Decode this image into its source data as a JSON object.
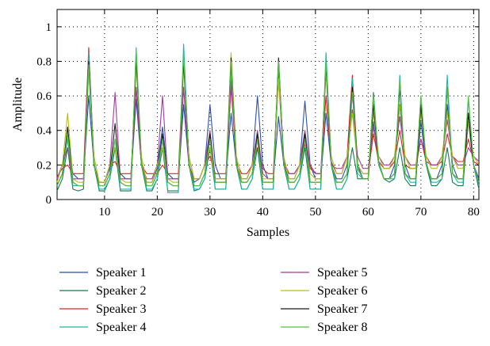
{
  "chart_data": {
    "type": "line",
    "title": "",
    "xlabel": "Samples",
    "ylabel": "Amplitude",
    "xlim": [
      1,
      81
    ],
    "ylim": [
      0,
      1.1
    ],
    "xticks": [
      10,
      20,
      30,
      40,
      50,
      60,
      70,
      80
    ],
    "yticks": [
      0,
      0.2,
      0.4,
      0.6,
      0.8,
      1
    ],
    "ytick_labels": [
      "0",
      "0.2",
      "0.4",
      "0.6",
      "0.8",
      "1"
    ],
    "grid": true,
    "legend_position": "bottom",
    "series": [
      {
        "name": "Speaker 1",
        "color": "#2a4fb0",
        "values": [
          0.12,
          0.2,
          0.35,
          0.15,
          0.12,
          0.12,
          0.6,
          0.2,
          0.1,
          0.1,
          0.18,
          0.3,
          0.15,
          0.12,
          0.12,
          0.58,
          0.2,
          0.1,
          0.1,
          0.18,
          0.42,
          0.15,
          0.12,
          0.12,
          0.55,
          0.2,
          0.1,
          0.12,
          0.2,
          0.55,
          0.2,
          0.12,
          0.12,
          0.5,
          0.2,
          0.12,
          0.12,
          0.2,
          0.6,
          0.2,
          0.12,
          0.12,
          0.48,
          0.2,
          0.12,
          0.12,
          0.2,
          0.57,
          0.2,
          0.12,
          0.12,
          0.5,
          0.2,
          0.12,
          0.12,
          0.2,
          0.62,
          0.2,
          0.12,
          0.12,
          0.45,
          0.2,
          0.12,
          0.12,
          0.2,
          0.55,
          0.2,
          0.12,
          0.12,
          0.45,
          0.2,
          0.12,
          0.12,
          0.2,
          0.55,
          0.2,
          0.12,
          0.12,
          0.45,
          0.2,
          0.12
        ]
      },
      {
        "name": "Speaker 2",
        "color": "#137a4e",
        "values": [
          0.05,
          0.12,
          0.3,
          0.06,
          0.05,
          0.06,
          0.76,
          0.2,
          0.05,
          0.05,
          0.12,
          0.3,
          0.05,
          0.05,
          0.05,
          0.83,
          0.2,
          0.05,
          0.05,
          0.12,
          0.3,
          0.05,
          0.05,
          0.05,
          0.85,
          0.2,
          0.05,
          0.06,
          0.12,
          0.3,
          0.06,
          0.06,
          0.06,
          0.7,
          0.2,
          0.06,
          0.06,
          0.12,
          0.3,
          0.06,
          0.06,
          0.06,
          0.78,
          0.2,
          0.06,
          0.06,
          0.12,
          0.3,
          0.06,
          0.06,
          0.06,
          0.8,
          0.2,
          0.06,
          0.06,
          0.12,
          0.3,
          0.12,
          0.12,
          0.12,
          0.62,
          0.2,
          0.12,
          0.1,
          0.12,
          0.3,
          0.12,
          0.08,
          0.08,
          0.55,
          0.2,
          0.08,
          0.08,
          0.12,
          0.3,
          0.1,
          0.08,
          0.08,
          0.5,
          0.2,
          0.06
        ]
      },
      {
        "name": "Speaker 3",
        "color": "#d92626",
        "values": [
          0.13,
          0.18,
          0.2,
          0.15,
          0.15,
          0.15,
          0.88,
          0.2,
          0.1,
          0.1,
          0.2,
          0.22,
          0.15,
          0.15,
          0.15,
          0.65,
          0.2,
          0.15,
          0.15,
          0.15,
          0.2,
          0.15,
          0.15,
          0.15,
          0.82,
          0.25,
          0.12,
          0.12,
          0.2,
          0.25,
          0.15,
          0.15,
          0.15,
          0.65,
          0.22,
          0.15,
          0.15,
          0.2,
          0.3,
          0.18,
          0.15,
          0.15,
          0.75,
          0.22,
          0.15,
          0.15,
          0.2,
          0.32,
          0.2,
          0.15,
          0.15,
          0.6,
          0.22,
          0.15,
          0.15,
          0.25,
          0.72,
          0.2,
          0.15,
          0.15,
          0.38,
          0.22,
          0.18,
          0.18,
          0.22,
          0.4,
          0.2,
          0.18,
          0.18,
          0.35,
          0.22,
          0.2,
          0.2,
          0.22,
          0.38,
          0.25,
          0.22,
          0.22,
          0.35,
          0.22,
          0.2
        ]
      },
      {
        "name": "Speaker 4",
        "color": "#16b8a6",
        "values": [
          0.08,
          0.15,
          0.35,
          0.08,
          0.08,
          0.08,
          0.85,
          0.22,
          0.06,
          0.06,
          0.12,
          0.35,
          0.06,
          0.06,
          0.06,
          0.88,
          0.22,
          0.06,
          0.06,
          0.12,
          0.35,
          0.04,
          0.04,
          0.04,
          0.9,
          0.22,
          0.06,
          0.06,
          0.12,
          0.35,
          0.06,
          0.06,
          0.06,
          0.75,
          0.22,
          0.06,
          0.06,
          0.12,
          0.35,
          0.06,
          0.06,
          0.06,
          0.8,
          0.22,
          0.06,
          0.06,
          0.12,
          0.35,
          0.06,
          0.06,
          0.06,
          0.85,
          0.22,
          0.06,
          0.06,
          0.12,
          0.7,
          0.15,
          0.12,
          0.12,
          0.6,
          0.22,
          0.12,
          0.12,
          0.12,
          0.72,
          0.15,
          0.1,
          0.1,
          0.6,
          0.22,
          0.1,
          0.1,
          0.12,
          0.72,
          0.15,
          0.1,
          0.1,
          0.58,
          0.2,
          0.08
        ]
      },
      {
        "name": "Speaker 5",
        "color": "#a23a9e",
        "values": [
          0.12,
          0.2,
          0.3,
          0.12,
          0.12,
          0.12,
          0.8,
          0.2,
          0.1,
          0.1,
          0.2,
          0.62,
          0.12,
          0.12,
          0.12,
          0.65,
          0.2,
          0.12,
          0.12,
          0.2,
          0.6,
          0.12,
          0.12,
          0.12,
          0.65,
          0.2,
          0.12,
          0.12,
          0.2,
          0.4,
          0.12,
          0.12,
          0.12,
          0.68,
          0.2,
          0.12,
          0.12,
          0.2,
          0.4,
          0.15,
          0.12,
          0.12,
          0.7,
          0.2,
          0.15,
          0.15,
          0.2,
          0.4,
          0.18,
          0.15,
          0.15,
          0.75,
          0.2,
          0.18,
          0.18,
          0.25,
          0.52,
          0.25,
          0.18,
          0.18,
          0.42,
          0.25,
          0.2,
          0.2,
          0.25,
          0.48,
          0.25,
          0.2,
          0.2,
          0.35,
          0.25,
          0.2,
          0.2,
          0.25,
          0.46,
          0.25,
          0.2,
          0.2,
          0.3,
          0.25,
          0.22
        ]
      },
      {
        "name": "Speaker 6",
        "color": "#b8bc1a",
        "values": [
          0.1,
          0.2,
          0.5,
          0.12,
          0.1,
          0.1,
          0.75,
          0.25,
          0.1,
          0.1,
          0.2,
          0.3,
          0.12,
          0.1,
          0.1,
          0.78,
          0.25,
          0.1,
          0.1,
          0.2,
          0.3,
          0.12,
          0.1,
          0.1,
          0.78,
          0.25,
          0.12,
          0.12,
          0.2,
          0.3,
          0.12,
          0.12,
          0.12,
          0.85,
          0.25,
          0.12,
          0.12,
          0.2,
          0.35,
          0.12,
          0.12,
          0.12,
          0.7,
          0.25,
          0.12,
          0.12,
          0.2,
          0.35,
          0.15,
          0.12,
          0.12,
          0.75,
          0.25,
          0.15,
          0.15,
          0.25,
          0.5,
          0.2,
          0.15,
          0.15,
          0.5,
          0.25,
          0.18,
          0.18,
          0.25,
          0.55,
          0.25,
          0.18,
          0.18,
          0.5,
          0.25,
          0.18,
          0.18,
          0.25,
          0.5,
          0.25,
          0.18,
          0.18,
          0.45,
          0.25,
          0.2
        ]
      },
      {
        "name": "Speaker 7",
        "color": "#1a1a1a",
        "values": [
          0.08,
          0.15,
          0.42,
          0.1,
          0.08,
          0.08,
          0.8,
          0.2,
          0.08,
          0.08,
          0.15,
          0.44,
          0.1,
          0.08,
          0.08,
          0.82,
          0.2,
          0.08,
          0.08,
          0.15,
          0.38,
          0.1,
          0.08,
          0.08,
          0.8,
          0.2,
          0.08,
          0.08,
          0.15,
          0.38,
          0.1,
          0.1,
          0.1,
          0.82,
          0.2,
          0.1,
          0.1,
          0.15,
          0.38,
          0.1,
          0.1,
          0.1,
          0.82,
          0.2,
          0.1,
          0.1,
          0.15,
          0.38,
          0.1,
          0.1,
          0.1,
          0.78,
          0.2,
          0.1,
          0.1,
          0.15,
          0.65,
          0.18,
          0.12,
          0.12,
          0.55,
          0.2,
          0.12,
          0.12,
          0.15,
          0.65,
          0.15,
          0.12,
          0.12,
          0.55,
          0.2,
          0.12,
          0.12,
          0.15,
          0.65,
          0.15,
          0.12,
          0.12,
          0.5,
          0.2,
          0.1
        ]
      },
      {
        "name": "Speaker 8",
        "color": "#55c23a",
        "values": [
          0.08,
          0.15,
          0.38,
          0.1,
          0.08,
          0.08,
          0.78,
          0.2,
          0.08,
          0.08,
          0.15,
          0.35,
          0.1,
          0.08,
          0.08,
          0.86,
          0.2,
          0.08,
          0.08,
          0.15,
          0.35,
          0.1,
          0.08,
          0.08,
          0.84,
          0.2,
          0.08,
          0.08,
          0.15,
          0.35,
          0.1,
          0.1,
          0.1,
          0.8,
          0.2,
          0.1,
          0.1,
          0.15,
          0.35,
          0.1,
          0.1,
          0.1,
          0.8,
          0.2,
          0.1,
          0.1,
          0.15,
          0.35,
          0.1,
          0.1,
          0.1,
          0.8,
          0.2,
          0.1,
          0.1,
          0.15,
          0.62,
          0.18,
          0.12,
          0.12,
          0.6,
          0.2,
          0.12,
          0.12,
          0.15,
          0.68,
          0.15,
          0.12,
          0.12,
          0.6,
          0.2,
          0.12,
          0.12,
          0.15,
          0.65,
          0.15,
          0.12,
          0.12,
          0.6,
          0.2,
          0.1
        ]
      }
    ]
  }
}
